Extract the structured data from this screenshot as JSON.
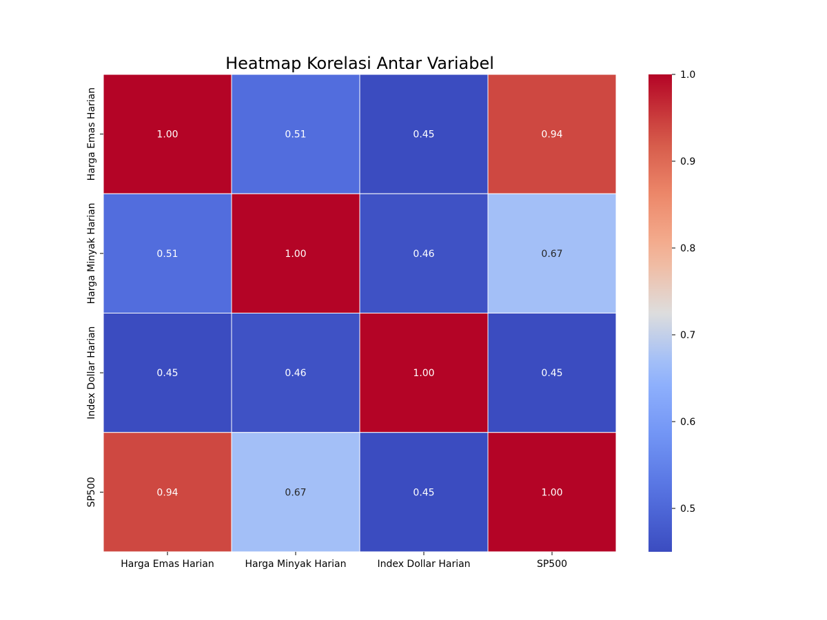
{
  "chart_data": {
    "type": "heatmap",
    "title": "Heatmap Korelasi Antar Variabel",
    "xlabel": "",
    "ylabel": "",
    "x_categories": [
      "Harga Emas Harian",
      "Harga Minyak Harian",
      "Index Dollar Harian",
      "SP500"
    ],
    "y_categories": [
      "Harga Emas Harian",
      "Harga Minyak Harian",
      "Index Dollar Harian",
      "SP500"
    ],
    "values": [
      [
        1.0,
        0.51,
        0.45,
        0.94
      ],
      [
        0.51,
        1.0,
        0.46,
        0.67
      ],
      [
        0.45,
        0.46,
        1.0,
        0.45
      ],
      [
        0.94,
        0.67,
        0.45,
        1.0
      ]
    ],
    "value_labels": [
      [
        "1.00",
        "0.51",
        "0.45",
        "0.94"
      ],
      [
        "0.51",
        "1.00",
        "0.46",
        "0.67"
      ],
      [
        "0.45",
        "0.46",
        "1.00",
        "0.45"
      ],
      [
        "0.94",
        "0.67",
        "0.45",
        "1.00"
      ]
    ],
    "colormap": "coolwarm",
    "colorbar": {
      "range": [
        0.45,
        1.0
      ],
      "ticks": [
        0.5,
        0.6,
        0.7,
        0.8,
        0.9,
        1.0
      ],
      "tick_labels": [
        "0.5",
        "0.6",
        "0.7",
        "0.8",
        "0.9",
        "1.0"
      ]
    },
    "grid": false,
    "legend": "colorbar-right"
  }
}
